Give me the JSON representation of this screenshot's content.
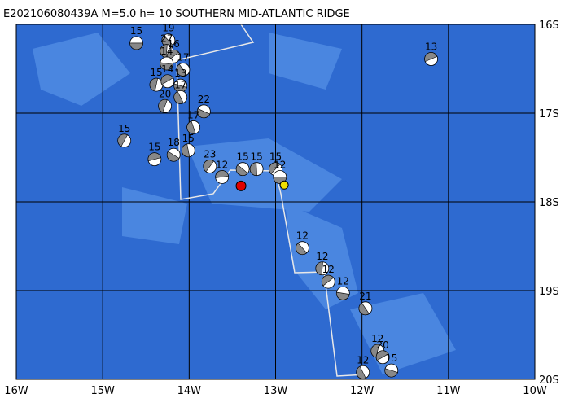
{
  "title": "E202106080439A  M=5.0  h= 10 SOUTHERN MID-ATLANTIC RIDGE",
  "lonlim": [
    -16,
    -10
  ],
  "latlim": [
    -16,
    -20
  ],
  "x_ticks": [
    {
      "value": -16,
      "label": "16W"
    },
    {
      "value": -15,
      "label": "15W"
    },
    {
      "value": -14,
      "label": "14W"
    },
    {
      "value": -13,
      "label": "13W"
    },
    {
      "value": -12,
      "label": "12W"
    },
    {
      "value": -11,
      "label": "11W"
    },
    {
      "value": -10,
      "label": "10W"
    }
  ],
  "y_ticks": [
    {
      "value": -16,
      "label": "16S"
    },
    {
      "value": -17,
      "label": "17S"
    },
    {
      "value": -18,
      "label": "18S"
    },
    {
      "value": -19,
      "label": "19S"
    },
    {
      "value": -20,
      "label": "20S"
    }
  ],
  "events": [
    {
      "lon": -14.61,
      "lat": -16.21,
      "depth": "15"
    },
    {
      "lon": -14.24,
      "lat": -16.18,
      "depth": "19"
    },
    {
      "lon": -14.26,
      "lat": -16.3,
      "depth": "27"
    },
    {
      "lon": -14.18,
      "lat": -16.36,
      "depth": "16"
    },
    {
      "lon": -14.26,
      "lat": -16.44,
      "depth": "14"
    },
    {
      "lon": -14.07,
      "lat": -16.51,
      "depth": "17"
    },
    {
      "lon": -14.38,
      "lat": -16.68,
      "depth": "15"
    },
    {
      "lon": -14.25,
      "lat": -16.64,
      "depth": "14"
    },
    {
      "lon": -14.1,
      "lat": -16.69,
      "depth": "13"
    },
    {
      "lon": -14.1,
      "lat": -16.82,
      "depth": "17"
    },
    {
      "lon": -14.28,
      "lat": -16.92,
      "depth": "20"
    },
    {
      "lon": -11.2,
      "lat": -16.39,
      "depth": "13"
    },
    {
      "lon": -13.83,
      "lat": -16.98,
      "depth": "22"
    },
    {
      "lon": -13.95,
      "lat": -17.16,
      "depth": "17"
    },
    {
      "lon": -14.75,
      "lat": -17.31,
      "depth": "15"
    },
    {
      "lon": -14.4,
      "lat": -17.52,
      "depth": "15"
    },
    {
      "lon": -14.18,
      "lat": -17.47,
      "depth": "18"
    },
    {
      "lon": -14.01,
      "lat": -17.42,
      "depth": "15"
    },
    {
      "lon": -13.76,
      "lat": -17.6,
      "depth": "23"
    },
    {
      "lon": -13.62,
      "lat": -17.72,
      "depth": "12"
    },
    {
      "lon": -13.38,
      "lat": -17.63,
      "depth": "15"
    },
    {
      "lon": -13.22,
      "lat": -17.63,
      "depth": "15"
    },
    {
      "lon": -13.0,
      "lat": -17.63,
      "depth": "15"
    },
    {
      "lon": -12.95,
      "lat": -17.72,
      "depth": "12"
    },
    {
      "lon": -12.69,
      "lat": -18.52,
      "depth": "12"
    },
    {
      "lon": -12.46,
      "lat": -18.75,
      "depth": "12"
    },
    {
      "lon": -12.39,
      "lat": -18.9,
      "depth": "12"
    },
    {
      "lon": -12.22,
      "lat": -19.03,
      "depth": "12"
    },
    {
      "lon": -11.96,
      "lat": -19.2,
      "depth": "21"
    },
    {
      "lon": -11.82,
      "lat": -19.68,
      "depth": "12"
    },
    {
      "lon": -11.76,
      "lat": -19.75,
      "depth": "20"
    },
    {
      "lon": -11.66,
      "lat": -19.9,
      "depth": "15"
    },
    {
      "lon": -11.99,
      "lat": -19.92,
      "depth": "12"
    }
  ],
  "main_event": {
    "lon": -13.4,
    "lat": -17.82
  },
  "second_event": {
    "lon": -12.9,
    "lat": -17.81
  }
}
